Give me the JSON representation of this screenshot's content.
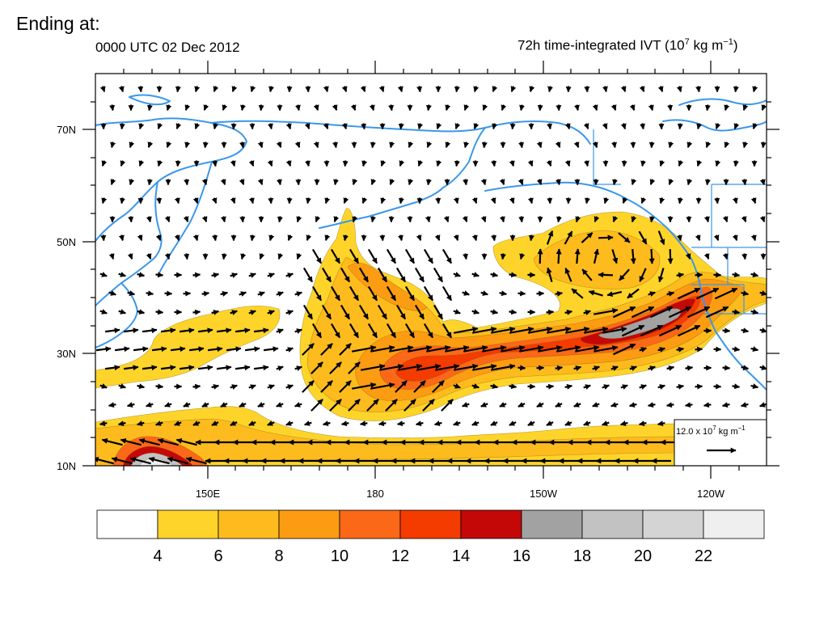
{
  "header": {
    "slide_title": "Ending at:",
    "valid_time": "0000 UTC 02 Dec 2012",
    "field_title_main": "72h time-integrated IVT (10",
    "field_title_exp1": "7",
    "field_title_unit": " kg m",
    "field_title_exp2": "−1",
    "field_title_close": ")"
  },
  "map": {
    "lat_labels": [
      "70N",
      "50N",
      "30N",
      "10N"
    ],
    "lon_labels": [
      "150E",
      "180",
      "150W",
      "120W"
    ],
    "reference_vector": {
      "label_main": "12.0 x 10",
      "label_exp1": "7",
      "label_unit": " kg m",
      "label_exp2": "−1"
    },
    "colors": {
      "coastline": "#3a97ea",
      "vector": "#000000",
      "frame": "#000000"
    }
  },
  "colorbar": {
    "labels": [
      "4",
      "6",
      "8",
      "10",
      "12",
      "14",
      "16",
      "18",
      "20",
      "22"
    ],
    "colors": [
      "#ffffff",
      "#fed42a",
      "#fdbb1e",
      "#fc9c12",
      "#fa6818",
      "#f43b00",
      "#c40808",
      "#a2a2a2",
      "#c2c2c2",
      "#d4d4d4",
      "#efefef"
    ]
  }
}
